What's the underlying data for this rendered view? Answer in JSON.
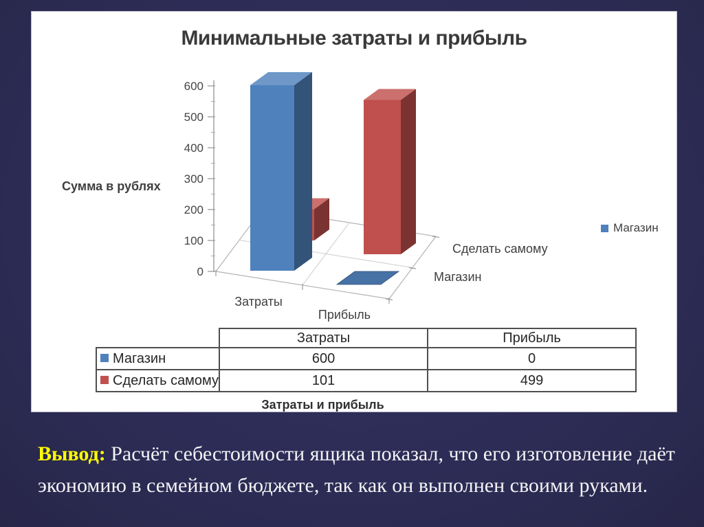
{
  "slide": {
    "background_color": "#2c2b54",
    "conclusion": {
      "label": "Вывод:",
      "label_color": "#ffff00",
      "line1": "Расчёт себестоимости ящика показал, что его изготовление даёт",
      "line2": "экономию в семейном бюджете, так как он выполнен своими руками."
    }
  },
  "chart_data": {
    "type": "bar",
    "projection": "3d",
    "title": "Минимальные затраты и прибыль",
    "ylabel": "Сумма в рублях",
    "xlabel": "Затраты и прибыль",
    "categories": [
      "Затраты",
      "Прибыль"
    ],
    "series": [
      {
        "name": "Магазин",
        "color": "#4f81bd",
        "values": [
          600,
          0
        ]
      },
      {
        "name": "Сделать самому",
        "color": "#c0504d",
        "values": [
          101,
          499
        ]
      }
    ],
    "ylim": [
      0,
      600
    ],
    "yticks": [
      0,
      100,
      200,
      300,
      400,
      500,
      600
    ],
    "grid": false,
    "legend": {
      "position": "right",
      "entries": [
        {
          "label": "Магазин",
          "color": "#4f81bd"
        }
      ]
    },
    "plot_background": "#ffffff"
  },
  "table": {
    "column_headers": [
      "",
      "Затраты",
      "Прибыль"
    ],
    "rows": [
      {
        "label": "Магазин",
        "marker_color": "#4f81bd",
        "values": [
          "600",
          "0"
        ]
      },
      {
        "label": "Сделать самому",
        "marker_color": "#c0504d",
        "values": [
          "101",
          "499"
        ]
      }
    ]
  }
}
